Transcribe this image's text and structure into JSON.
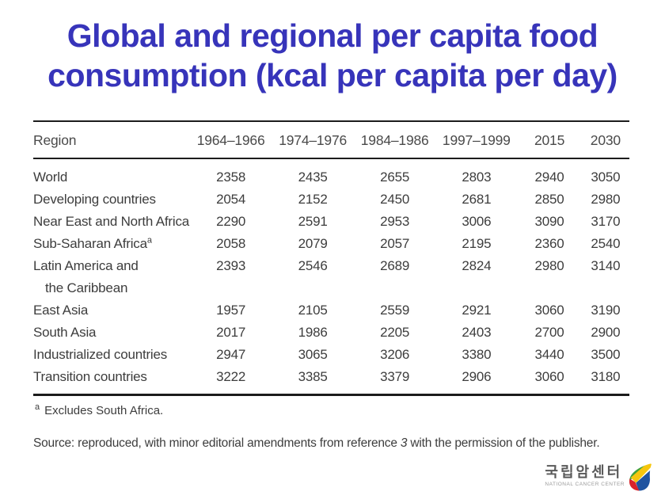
{
  "title": {
    "line1": "Global and regional per capita food",
    "line2": "consumption (kcal per capita per day)",
    "color": "#3734ba"
  },
  "table": {
    "columns": [
      "Region",
      "1964–1966",
      "1974–1976",
      "1984–1986",
      "1997–1999",
      "2015",
      "2030"
    ],
    "rows": [
      {
        "region": "World",
        "values": [
          "2358",
          "2435",
          "2655",
          "2803",
          "2940",
          "3050"
        ]
      },
      {
        "region": "Developing countries",
        "values": [
          "2054",
          "2152",
          "2450",
          "2681",
          "2850",
          "2980"
        ]
      },
      {
        "region": "Near East and North Africa",
        "values": [
          "2290",
          "2591",
          "2953",
          "3006",
          "3090",
          "3170"
        ]
      },
      {
        "region": "Sub-Saharan Africa",
        "sup": "a",
        "values": [
          "2058",
          "2079",
          "2057",
          "2195",
          "2360",
          "2540"
        ]
      },
      {
        "region": "Latin America and",
        "region_line2": "the Caribbean",
        "values": [
          "2393",
          "2546",
          "2689",
          "2824",
          "2980",
          "3140"
        ]
      },
      {
        "region": "East Asia",
        "values": [
          "1957",
          "2105",
          "2559",
          "2921",
          "3060",
          "3190"
        ]
      },
      {
        "region": "South Asia",
        "values": [
          "2017",
          "1986",
          "2205",
          "2403",
          "2700",
          "2900"
        ]
      },
      {
        "region": "Industrialized countries",
        "values": [
          "2947",
          "3065",
          "3206",
          "3380",
          "3440",
          "3500"
        ]
      },
      {
        "region": "Transition countries",
        "values": [
          "3222",
          "3385",
          "3379",
          "2906",
          "3060",
          "3180"
        ]
      }
    ],
    "footnote": {
      "sup": "a",
      "text": "Excludes South Africa."
    }
  },
  "source": {
    "prefix": "Source: reproduced, with minor editorial amendments from reference ",
    "ref": "3",
    "suffix": " with the permission of the publisher."
  },
  "logo": {
    "korean": "국립암센터",
    "english": "NATIONAL CANCER CENTER",
    "colors": {
      "green": "#3fa13c",
      "yellow": "#f6c60d",
      "red": "#d8232a",
      "blue": "#1f53a0"
    }
  },
  "chart_data": {
    "type": "table",
    "title": "Global and regional per capita food consumption (kcal per capita per day)",
    "categories": [
      "1964–1966",
      "1974–1976",
      "1984–1986",
      "1997–1999",
      "2015",
      "2030"
    ],
    "series": [
      {
        "name": "World",
        "values": [
          2358,
          2435,
          2655,
          2803,
          2940,
          3050
        ]
      },
      {
        "name": "Developing countries",
        "values": [
          2054,
          2152,
          2450,
          2681,
          2850,
          2980
        ]
      },
      {
        "name": "Near East and North Africa",
        "values": [
          2290,
          2591,
          2953,
          3006,
          3090,
          3170
        ]
      },
      {
        "name": "Sub-Saharan Africa",
        "values": [
          2058,
          2079,
          2057,
          2195,
          2360,
          2540
        ]
      },
      {
        "name": "Latin America and the Caribbean",
        "values": [
          2393,
          2546,
          2689,
          2824,
          2980,
          3140
        ]
      },
      {
        "name": "East Asia",
        "values": [
          1957,
          2105,
          2559,
          2921,
          3060,
          3190
        ]
      },
      {
        "name": "South Asia",
        "values": [
          2017,
          1986,
          2205,
          2403,
          2700,
          2900
        ]
      },
      {
        "name": "Industrialized countries",
        "values": [
          2947,
          3065,
          3206,
          3380,
          3440,
          3500
        ]
      },
      {
        "name": "Transition countries",
        "values": [
          3222,
          3385,
          3379,
          2906,
          3060,
          3180
        ]
      }
    ]
  }
}
